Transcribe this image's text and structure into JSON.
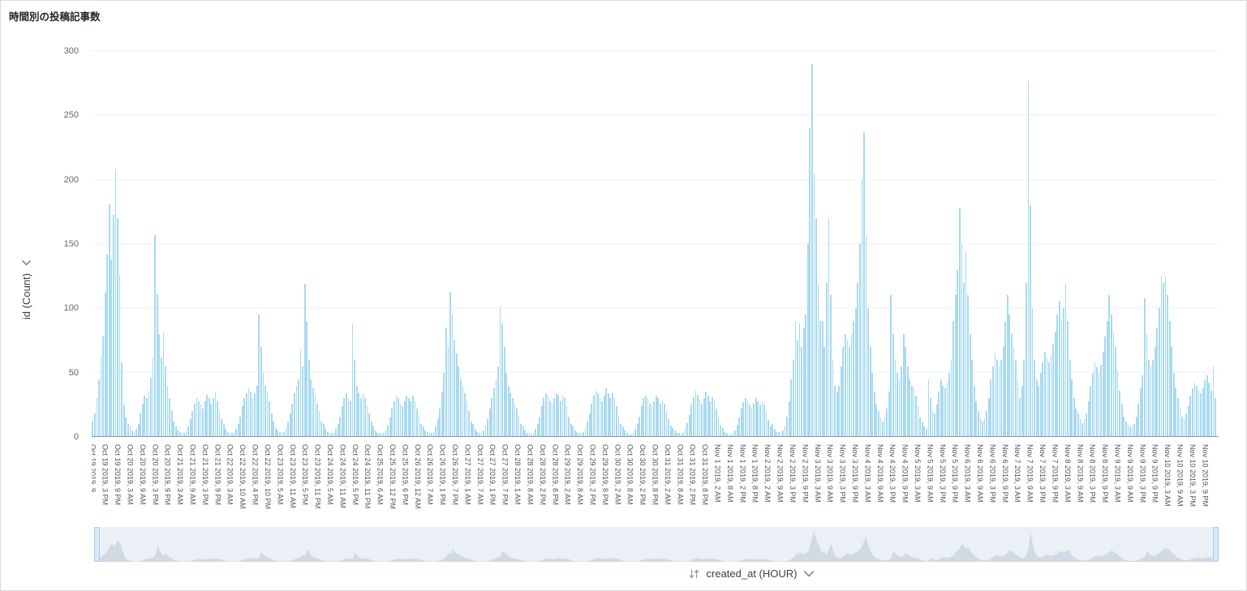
{
  "title": "時間別の投稿記事数",
  "colors": {
    "bar": "#a8daf0",
    "grid": "#f0f1f3",
    "axis": "#8f979f",
    "brush_bg": "#ebf0f6",
    "brush_area": "#c9d5e1",
    "brush_handle": "#d8e8f6",
    "brush_handle_border": "#aecde8",
    "text_muted": "#5b6770"
  },
  "y_axis_field": {
    "label": "id (Count)"
  },
  "x_axis_field": {
    "label": "created_at (HOUR)"
  },
  "chart_data": {
    "type": "bar",
    "title": "時間別の投稿記事数",
    "xlabel": "created_at (HOUR)",
    "ylabel": "id (Count)",
    "ylim": [
      0,
      300
    ],
    "yticks": [
      0,
      50,
      100,
      150,
      200,
      250,
      300
    ],
    "grid": true,
    "legend": "none",
    "x_unit": "hour",
    "x_start": "Oct 19 2019, 9 AM",
    "x_end": "Nov 10 2019, 9 PM",
    "range_slider": "full range selected",
    "tick_step_bars": 6,
    "x_tick_labels": [
      "Oct 19 2019, 9...",
      "Oct 19 2019, 3 PM",
      "Oct 19 2019, 9 PM",
      "Oct 20 2019, 3 AM",
      "Oct 20 2019, 9 AM",
      "Oct 20 2019, 3 PM",
      "Oct 20 2019, 9 PM",
      "Oct 21 2019, 3 AM",
      "Oct 21 2019, 9 AM",
      "Oct 21 2019, 3 PM",
      "Oct 21 2019, 9 PM",
      "Oct 22 2019, 3 AM",
      "Oct 22 2019, 10 AM",
      "Oct 22 2019, 4 PM",
      "Oct 22 2019, 10 PM",
      "Oct 23 2019, 5 AM",
      "Oct 23 2019, 11 AM",
      "Oct 23 2019, 5 PM",
      "Oct 23 2019, 11 PM",
      "Oct 24 2019, 5 AM",
      "Oct 24 2019, 11 AM",
      "Oct 24 2019, 5 PM",
      "Oct 24 2019, 11 PM",
      "Oct 25 2019, 6 AM",
      "Oct 25 2019, 12 PM",
      "Oct 25 2019, 6 PM",
      "Oct 26 2019, 12 AM",
      "Oct 26 2019, 7 AM",
      "Oct 26 2019, 1 PM",
      "Oct 26 2019, 7 PM",
      "Oct 27 2019, 1 AM",
      "Oct 27 2019, 7 AM",
      "Oct 27 2019, 1 PM",
      "Oct 27 2019, 7 PM",
      "Oct 28 2019, 1 AM",
      "Oct 28 2019, 8 AM",
      "Oct 28 2019, 2 PM",
      "Oct 28 2019, 8 PM",
      "Oct 29 2019, 2 AM",
      "Oct 29 2019, 8 AM",
      "Oct 29 2019, 2 PM",
      "Oct 29 2019, 8 PM",
      "Oct 30 2019, 2 AM",
      "Oct 30 2019, 8 AM",
      "Oct 30 2019, 2 PM",
      "Oct 30 2019, 8 PM",
      "Oct 31 2019, 2 AM",
      "Oct 31 2019, 8 AM",
      "Oct 31 2019, 2 PM",
      "Oct 31 2019, 8 PM",
      "Nov 1 2019, 2 AM",
      "Nov 1 2019, 8 AM",
      "Nov 1 2019, 2 PM",
      "Nov 1 2019, 8 PM",
      "Nov 2 2019, 2 AM",
      "Nov 2 2019, 9 AM",
      "Nov 2 2019, 3 PM",
      "Nov 2 2019, 9 PM",
      "Nov 3 2019, 3 AM",
      "Nov 3 2019, 9 AM",
      "Nov 3 2019, 3 PM",
      "Nov 3 2019, 9 PM",
      "Nov 4 2019, 3 AM",
      "Nov 4 2019, 9 AM",
      "Nov 4 2019, 3 PM",
      "Nov 4 2019, 9 PM",
      "Nov 5 2019, 3 AM",
      "Nov 5 2019, 9 AM",
      "Nov 5 2019, 3 PM",
      "Nov 5 2019, 9 PM",
      "Nov 6 2019, 3 AM",
      "Nov 6 2019, 9 AM",
      "Nov 6 2019, 3 PM",
      "Nov 6 2019, 9 PM",
      "Nov 7 2019, 3 AM",
      "Nov 7 2019, 9 AM",
      "Nov 7 2019, 3 PM",
      "Nov 7 2019, 9 PM",
      "Nov 8 2019, 3 AM",
      "Nov 8 2019, 9 AM",
      "Nov 8 2019, 3 PM",
      "Nov 8 2019, 9 PM",
      "Nov 9 2019, 3 AM",
      "Nov 9 2019, 9 AM",
      "Nov 9 2019, 3 PM",
      "Nov 9 2019, 9 PM",
      "Nov 10 2019, 3 AM",
      "Nov 10 2019, 9 AM",
      "Nov 10 2019, 3 PM",
      "Nov 10 2019, 9 PM"
    ],
    "values": [
      12,
      18,
      30,
      45,
      62,
      78,
      112,
      142,
      181,
      138,
      173,
      208,
      170,
      126,
      58,
      25,
      15,
      10,
      8,
      5,
      4,
      6,
      10,
      18,
      26,
      32,
      30,
      36,
      46,
      62,
      157,
      111,
      80,
      62,
      81,
      55,
      40,
      30,
      20,
      12,
      8,
      5,
      4,
      3,
      3,
      5,
      8,
      14,
      20,
      26,
      30,
      28,
      25,
      22,
      28,
      33,
      30,
      26,
      30,
      35,
      28,
      20,
      14,
      10,
      6,
      4,
      3,
      3,
      4,
      6,
      10,
      16,
      24,
      30,
      34,
      38,
      35,
      30,
      34,
      40,
      95,
      70,
      50,
      40,
      35,
      28,
      18,
      12,
      7,
      5,
      4,
      3,
      4,
      7,
      12,
      18,
      26,
      34,
      40,
      45,
      68,
      55,
      119,
      90,
      60,
      45,
      38,
      32,
      26,
      20,
      12,
      10,
      6,
      4,
      3,
      3,
      4,
      6,
      10,
      16,
      24,
      30,
      34,
      30,
      28,
      88,
      60,
      40,
      34,
      30,
      34,
      30,
      24,
      18,
      12,
      8,
      5,
      3,
      3,
      2,
      3,
      5,
      9,
      15,
      22,
      28,
      32,
      30,
      26,
      24,
      28,
      32,
      30,
      28,
      32,
      28,
      22,
      16,
      10,
      8,
      5,
      4,
      3,
      3,
      4,
      8,
      14,
      22,
      35,
      50,
      85,
      70,
      113,
      95,
      75,
      65,
      55,
      45,
      40,
      34,
      28,
      20,
      12,
      10,
      6,
      4,
      3,
      3,
      5,
      8,
      14,
      22,
      30,
      38,
      45,
      55,
      101,
      88,
      70,
      50,
      40,
      34,
      30,
      26,
      22,
      16,
      10,
      8,
      5,
      3,
      3,
      2,
      3,
      6,
      10,
      16,
      24,
      30,
      34,
      32,
      28,
      26,
      30,
      34,
      32,
      28,
      32,
      30,
      24,
      16,
      10,
      8,
      5,
      4,
      3,
      3,
      4,
      7,
      12,
      18,
      26,
      32,
      36,
      34,
      30,
      28,
      32,
      38,
      34,
      30,
      34,
      30,
      24,
      17,
      10,
      8,
      5,
      3,
      2,
      2,
      3,
      6,
      10,
      16,
      24,
      30,
      32,
      30,
      26,
      24,
      28,
      32,
      30,
      26,
      28,
      26,
      20,
      14,
      9,
      7,
      5,
      3,
      3,
      2,
      3,
      6,
      11,
      17,
      25,
      31,
      36,
      33,
      29,
      26,
      30,
      35,
      32,
      28,
      31,
      28,
      22,
      15,
      9,
      7,
      4,
      3,
      2,
      2,
      3,
      5,
      9,
      15,
      22,
      27,
      30,
      28,
      25,
      23,
      26,
      30,
      28,
      25,
      28,
      25,
      20,
      13,
      8,
      10,
      6,
      4,
      4,
      3,
      5,
      9,
      16,
      28,
      45,
      60,
      90,
      75,
      88,
      70,
      85,
      95,
      150,
      240,
      290,
      205,
      170,
      120,
      90,
      90,
      70,
      120,
      170,
      110,
      60,
      40,
      35,
      40,
      55,
      70,
      80,
      75,
      70,
      80,
      90,
      100,
      120,
      150,
      200,
      237,
      156,
      100,
      70,
      50,
      35,
      25,
      20,
      15,
      12,
      15,
      22,
      35,
      110,
      80,
      60,
      50,
      45,
      55,
      80,
      70,
      55,
      45,
      40,
      38,
      32,
      24,
      15,
      12,
      8,
      6,
      45,
      30,
      20,
      18,
      25,
      35,
      45,
      40,
      38,
      42,
      50,
      60,
      90,
      110,
      130,
      178,
      150,
      120,
      144,
      110,
      80,
      60,
      40,
      28,
      20,
      15,
      12,
      14,
      20,
      30,
      45,
      55,
      65,
      60,
      55,
      60,
      70,
      90,
      110,
      95,
      80,
      70,
      60,
      45,
      30,
      40,
      60,
      120,
      277,
      180,
      100,
      60,
      45,
      40,
      50,
      58,
      66,
      62,
      58,
      64,
      72,
      82,
      95,
      105,
      90,
      100,
      120,
      90,
      60,
      45,
      30,
      22,
      18,
      14,
      11,
      13,
      18,
      28,
      40,
      50,
      58,
      54,
      50,
      56,
      66,
      78,
      90,
      110,
      95,
      82,
      70,
      52,
      36,
      25,
      16,
      12,
      10,
      8,
      8,
      10,
      16,
      26,
      38,
      48,
      108,
      80,
      60,
      55,
      60,
      70,
      85,
      100,
      125,
      120,
      125,
      110,
      90,
      70,
      50,
      38,
      30,
      22,
      16,
      14,
      18,
      24,
      32,
      38,
      42,
      40,
      36,
      34,
      38,
      44,
      48,
      42,
      36,
      55,
      30
    ]
  }
}
